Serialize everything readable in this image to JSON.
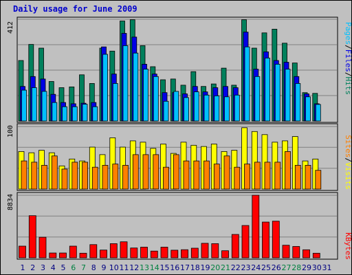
{
  "title": "Daily usage for June 2009",
  "colors": {
    "hits": "#00805c",
    "files": "#0000e6",
    "pages": "#00c0ff",
    "visits": "#ffff00",
    "sites": "#ff8000",
    "kbytes": "#ff0000",
    "weekend": "#008040",
    "weekday": "#000080",
    "panel": "#c0c0c0",
    "grid": "#808080"
  },
  "chart_data": [
    {
      "type": "bar",
      "ylim": [
        0,
        412
      ],
      "tick_label": "412",
      "legend": {
        "pages": "Pages",
        "sep1": "/",
        "files": "Files",
        "sep2": "/",
        "hits": "Hits"
      },
      "categories": [
        "1",
        "2",
        "3",
        "4",
        "5",
        "6",
        "7",
        "8",
        "9",
        "10",
        "11",
        "12",
        "13",
        "14",
        "15",
        "16",
        "17",
        "18",
        "19",
        "20",
        "21",
        "22",
        "23",
        "24",
        "25",
        "26",
        "27",
        "28",
        "29",
        "30",
        "31"
      ],
      "weekend_days": [
        "6",
        "7",
        "13",
        "14",
        "20",
        "21",
        "27",
        "28"
      ],
      "series": [
        {
          "name": "Hits",
          "values": [
            245,
            310,
            295,
            160,
            135,
            138,
            187,
            152,
            295,
            283,
            405,
            410,
            305,
            220,
            167,
            170,
            145,
            200,
            140,
            150,
            214,
            145,
            410,
            295,
            357,
            372,
            315,
            235,
            115,
            112,
            0
          ]
        },
        {
          "name": "Files",
          "values": [
            140,
            180,
            170,
            108,
            75,
            70,
            72,
            75,
            300,
            190,
            355,
            340,
            230,
            190,
            115,
            115,
            110,
            140,
            118,
            135,
            140,
            135,
            360,
            210,
            280,
            245,
            238,
            180,
            110,
            70,
            0
          ]
        },
        {
          "name": "Pages",
          "values": [
            125,
            135,
            120,
            75,
            58,
            58,
            68,
            58,
            270,
            152,
            305,
            275,
            210,
            180,
            80,
            120,
            95,
            118,
            105,
            102,
            98,
            105,
            300,
            180,
            255,
            230,
            210,
            152,
            98,
            67,
            0
          ]
        }
      ]
    },
    {
      "type": "bar",
      "ylim": [
        0,
        100
      ],
      "tick_label": "100",
      "legend": {
        "sites": "Sites",
        "sep1": "/",
        "visits": "Visits"
      },
      "categories": [
        "1",
        "2",
        "3",
        "4",
        "5",
        "6",
        "7",
        "8",
        "9",
        "10",
        "11",
        "12",
        "13",
        "14",
        "15",
        "16",
        "17",
        "18",
        "19",
        "20",
        "21",
        "22",
        "23",
        "24",
        "25",
        "26",
        "27",
        "28",
        "29",
        "30",
        "31"
      ],
      "series": [
        {
          "name": "Visits",
          "values": [
            60,
            58,
            62,
            58,
            37,
            48,
            45,
            67,
            55,
            82,
            67,
            77,
            75,
            65,
            72,
            57,
            75,
            70,
            68,
            72,
            60,
            62,
            98,
            92,
            87,
            75,
            77,
            84,
            45,
            48,
            0
          ]
        },
        {
          "name": "Sites",
          "values": [
            45,
            43,
            38,
            53,
            32,
            43,
            43,
            35,
            38,
            40,
            38,
            55,
            55,
            55,
            35,
            55,
            45,
            45,
            45,
            40,
            53,
            35,
            40,
            43,
            43,
            43,
            60,
            38,
            38,
            30,
            0
          ]
        }
      ]
    },
    {
      "type": "bar",
      "ylim": [
        0,
        8834
      ],
      "tick_label": "8834",
      "legend": {
        "kbytes": "KBytes"
      },
      "categories": [
        "1",
        "2",
        "3",
        "4",
        "5",
        "6",
        "7",
        "8",
        "9",
        "10",
        "11",
        "12",
        "13",
        "14",
        "15",
        "16",
        "17",
        "18",
        "19",
        "20",
        "21",
        "22",
        "23",
        "24",
        "25",
        "26",
        "27",
        "28",
        "29",
        "30",
        "31"
      ],
      "series": [
        {
          "name": "KBytes",
          "values": [
            1650,
            5950,
            2900,
            680,
            680,
            1650,
            650,
            1860,
            1100,
            2000,
            2260,
            1390,
            1500,
            950,
            1500,
            1080,
            1150,
            1360,
            2050,
            2000,
            1000,
            3300,
            4560,
            8834,
            5050,
            5170,
            1780,
            1600,
            1140,
            650,
            0
          ]
        }
      ]
    }
  ]
}
